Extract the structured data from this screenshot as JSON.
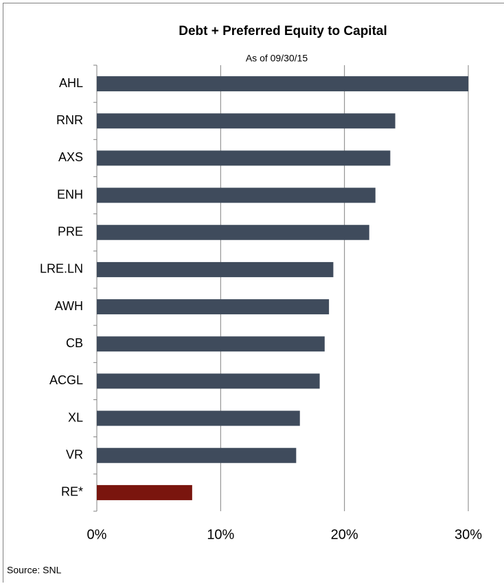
{
  "chart_data": {
    "type": "bar",
    "orientation": "horizontal",
    "title": "Debt + Preferred Equity to Capital",
    "subtitle": "As of 09/30/15",
    "categories": [
      "AHL",
      "RNR",
      "AXS",
      "ENH",
      "PRE",
      "LRE.LN",
      "AWH",
      "CB",
      "ACGL",
      "XL",
      "VR",
      "RE*"
    ],
    "values": [
      30,
      24.1,
      23.7,
      22.5,
      22.0,
      19.1,
      18.75,
      18.4,
      18.0,
      16.4,
      16.1,
      7.7
    ],
    "colors": [
      "#3f4b5c",
      "#3f4b5c",
      "#3f4b5c",
      "#3f4b5c",
      "#3f4b5c",
      "#3f4b5c",
      "#3f4b5c",
      "#3f4b5c",
      "#3f4b5c",
      "#3f4b5c",
      "#3f4b5c",
      "#7a150e"
    ],
    "xlim": [
      0,
      30
    ],
    "xticks": [
      {
        "value": 0,
        "label": "0%"
      },
      {
        "value": 10,
        "label": "10%"
      },
      {
        "value": 20,
        "label": "20%"
      },
      {
        "value": 30,
        "label": "30%"
      }
    ],
    "grid": true,
    "source": "Source: SNL"
  }
}
